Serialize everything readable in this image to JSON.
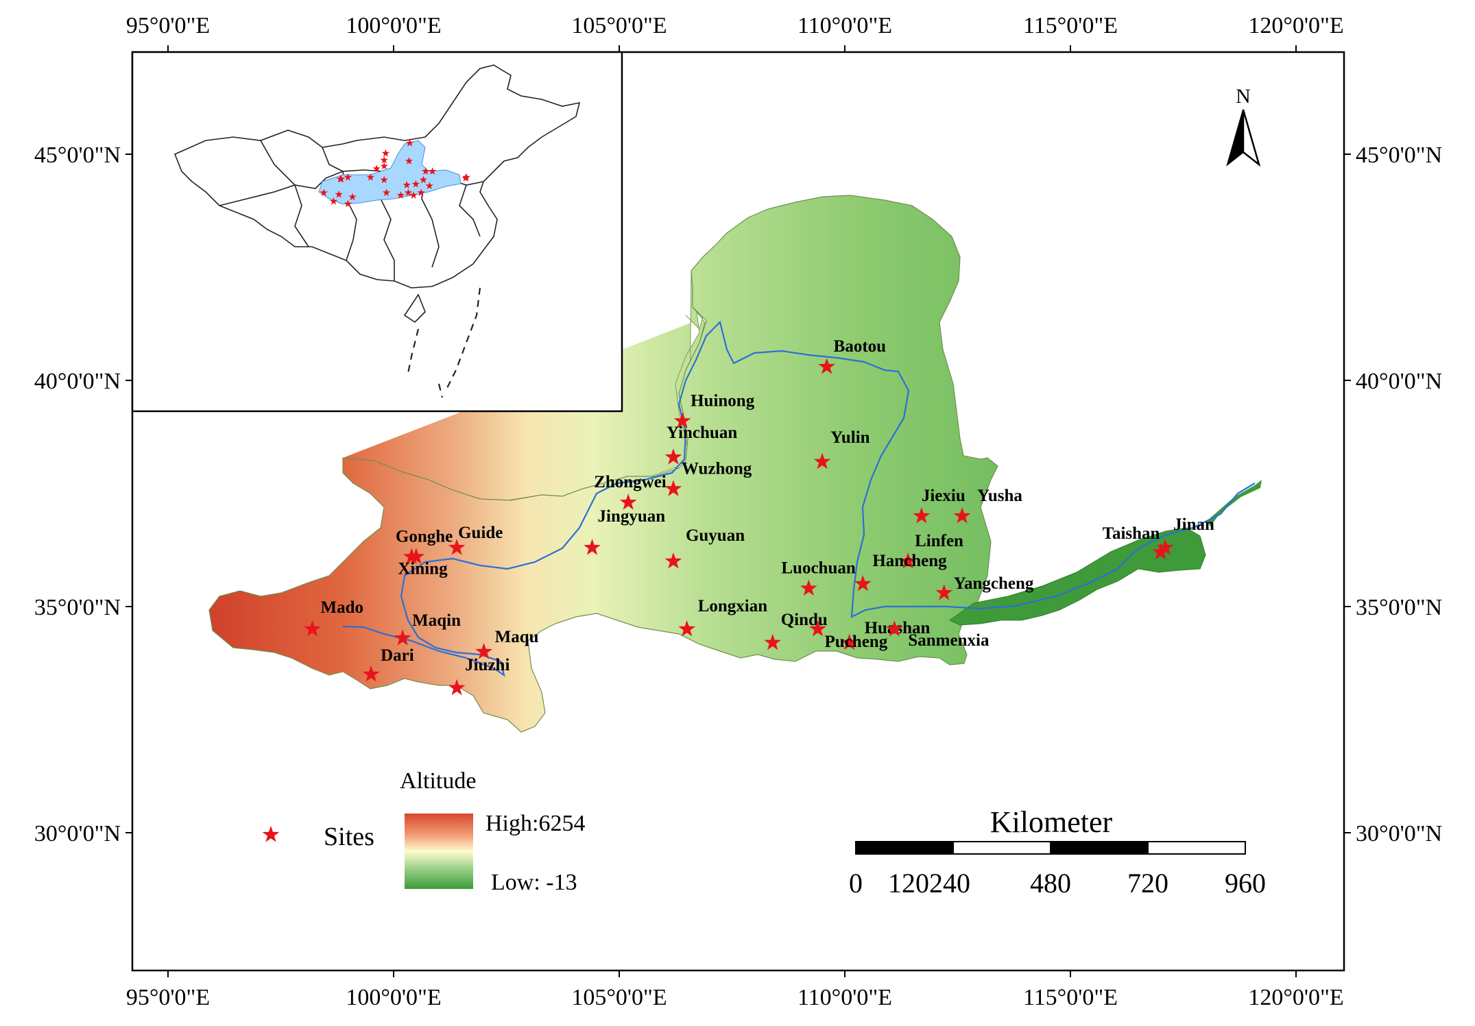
{
  "map": {
    "x_ticks": [
      "95°0'0\"E",
      "100°0'0\"E",
      "105°0'0\"E",
      "110°0'0\"E",
      "115°0'0\"E",
      "120°0'0\"E"
    ],
    "y_ticks": [
      "45°0'0\"N",
      "40°0'0\"N",
      "35°0'0\"N",
      "30°0'0\"N"
    ],
    "north": "N",
    "river_color": "#2b6fd6",
    "star_color": "#e8141c"
  },
  "sites": [
    {
      "label": "Baotou",
      "lon": 109.6,
      "lat": 40.3
    },
    {
      "label": "Huinong",
      "lon": 106.4,
      "lat": 39.1
    },
    {
      "label": "Yinchuan",
      "lon": 106.2,
      "lat": 38.3
    },
    {
      "label": "Yulin",
      "lon": 109.5,
      "lat": 38.2
    },
    {
      "label": "Wuzhong",
      "lon": 106.2,
      "lat": 37.6
    },
    {
      "label": "Zhongwei",
      "lon": 105.2,
      "lat": 37.3
    },
    {
      "label": "Jiexiu",
      "lon": 111.7,
      "lat": 37.0
    },
    {
      "label": "Yusha",
      "lon": 112.6,
      "lat": 37.0
    },
    {
      "label": "Jingyuan",
      "lon": 104.4,
      "lat": 36.3
    },
    {
      "label": "Guyuan",
      "lon": 106.2,
      "lat": 36.0
    },
    {
      "label": "Gonghe",
      "lon": 100.5,
      "lat": 36.1
    },
    {
      "label": "Guide",
      "lon": 101.4,
      "lat": 36.3
    },
    {
      "label": "Xining",
      "lon": 100.4,
      "lat": 36.1
    },
    {
      "label": "Linfen",
      "lon": 111.4,
      "lat": 36.0
    },
    {
      "label": "Taishan",
      "lon": 117.0,
      "lat": 36.2
    },
    {
      "label": "Jinan",
      "lon": 117.1,
      "lat": 36.3
    },
    {
      "label": "Luochuan",
      "lon": 109.2,
      "lat": 35.4
    },
    {
      "label": "Hancheng",
      "lon": 110.4,
      "lat": 35.5
    },
    {
      "label": "Yangcheng",
      "lon": 112.2,
      "lat": 35.3
    },
    {
      "label": "Mado",
      "lon": 98.2,
      "lat": 34.5
    },
    {
      "label": "Maqin",
      "lon": 100.2,
      "lat": 34.3
    },
    {
      "label": "Maqu",
      "lon": 102.0,
      "lat": 34.0
    },
    {
      "label": "Dari",
      "lon": 99.5,
      "lat": 33.5
    },
    {
      "label": "Jiuzhi",
      "lon": 101.4,
      "lat": 33.2
    },
    {
      "label": "Longxian",
      "lon": 106.5,
      "lat": 34.5
    },
    {
      "label": "Qindu",
      "lon": 108.4,
      "lat": 34.2
    },
    {
      "label": "Huashan",
      "lon": 110.1,
      "lat": 34.2
    },
    {
      "label": "Pucheng",
      "lon": 109.4,
      "lat": 34.5
    },
    {
      "label": "Sanmenxia",
      "lon": 111.1,
      "lat": 34.5
    }
  ],
  "legend": {
    "sites_label": "Sites",
    "altitude_title": "Altitude",
    "high_label": "High:6254",
    "low_label": "Low: -13",
    "ramp_colors": [
      "#d9452e",
      "#f2a27a",
      "#fffbd0",
      "#9fd28c",
      "#3d9a3a"
    ]
  },
  "scalebar": {
    "title": "Kilometer",
    "ticks": [
      "0",
      "120240",
      "480",
      "720",
      "960"
    ]
  }
}
